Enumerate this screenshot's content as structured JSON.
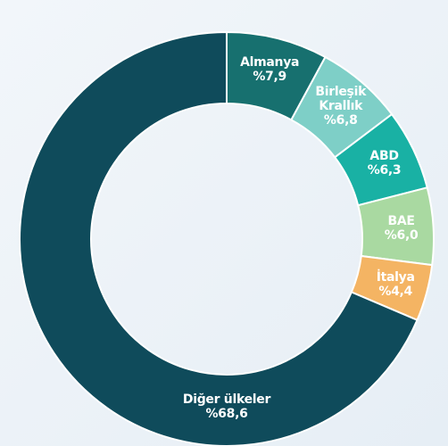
{
  "chart_data": {
    "type": "donut",
    "categories": [
      "Almanya",
      "Birleşik Krallık",
      "ABD",
      "BAE",
      "İtalya",
      "Diğer ülkeler"
    ],
    "values": [
      7.9,
      6.8,
      6.3,
      6.0,
      4.4,
      68.6
    ],
    "value_labels": [
      "%7,9",
      "%6,8",
      "%6,3",
      "%6,0",
      "%4,4",
      "%68,6"
    ],
    "colors": [
      "#17706f",
      "#7ecfc7",
      "#19b1a4",
      "#a9d9a1",
      "#f4b463",
      "#0f4b5b"
    ]
  }
}
